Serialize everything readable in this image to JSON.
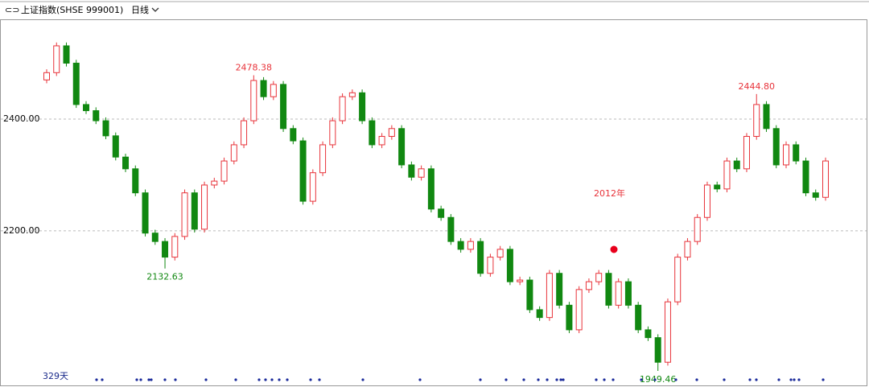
{
  "chart_data": {
    "type": "candlestick",
    "title": "上证指数(SHSE 999001)",
    "period": "日线",
    "annotation": "2012年",
    "count_label": "329天",
    "open": [
      2470,
      2483,
      2531,
      2500,
      2426,
      2415,
      2397,
      2370,
      2332,
      2311,
      2268,
      2196,
      2181,
      2153,
      2190,
      2268,
      2203,
      2282,
      2289,
      2325,
      2354,
      2397,
      2469,
      2440,
      2462,
      2383,
      2361,
      2253,
      2304,
      2354,
      2397,
      2440,
      2447,
      2397,
      2354,
      2369,
      2383,
      2318,
      2296,
      2311,
      2239,
      2224,
      2181,
      2167,
      2181,
      2124,
      2153,
      2167,
      2109,
      2112,
      2059,
      2045,
      2124,
      2067,
      2023,
      2095,
      2109,
      2124,
      2067,
      2109,
      2067,
      2023,
      2009,
      1965,
      2073,
      2153,
      2181,
      2224,
      2282,
      2275,
      2325,
      2311,
      2369,
      2426,
      2383,
      2318,
      2354,
      2325,
      2268,
      2260
    ],
    "high": [
      2489,
      2537,
      2537,
      2506,
      2432,
      2421,
      2403,
      2376,
      2338,
      2317,
      2274,
      2202,
      2187,
      2196,
      2274,
      2274,
      2288,
      2295,
      2331,
      2360,
      2403,
      2478.38,
      2475,
      2468,
      2468,
      2389,
      2367,
      2310,
      2360,
      2403,
      2446,
      2453,
      2453,
      2403,
      2375,
      2389,
      2389,
      2324,
      2317,
      2317,
      2245,
      2230,
      2187,
      2187,
      2187,
      2159,
      2173,
      2173,
      2118,
      2118,
      2065,
      2130,
      2130,
      2073,
      2101,
      2115,
      2130,
      2130,
      2115,
      2115,
      2073,
      2029,
      2015,
      2079,
      2159,
      2187,
      2230,
      2288,
      2288,
      2331,
      2331,
      2375,
      2444.8,
      2432,
      2389,
      2360,
      2360,
      2331,
      2274,
      2331
    ],
    "low": [
      2464,
      2477,
      2494,
      2420,
      2409,
      2391,
      2364,
      2326,
      2305,
      2262,
      2190,
      2175,
      2132.63,
      2147,
      2184,
      2197,
      2197,
      2276,
      2283,
      2319,
      2348,
      2391,
      2434,
      2434,
      2377,
      2355,
      2247,
      2247,
      2298,
      2348,
      2391,
      2434,
      2391,
      2348,
      2348,
      2363,
      2312,
      2290,
      2290,
      2233,
      2218,
      2175,
      2161,
      2161,
      2118,
      2118,
      2147,
      2103,
      2103,
      2053,
      2039,
      2039,
      2061,
      2017,
      2017,
      2089,
      2103,
      2061,
      2061,
      2061,
      2017,
      2003,
      1949.46,
      1959,
      2067,
      2147,
      2175,
      2218,
      2269,
      2269,
      2305,
      2305,
      2363,
      2377,
      2312,
      2312,
      2319,
      2262,
      2254,
      2254
    ],
    "close": [
      2483,
      2531,
      2500,
      2426,
      2415,
      2397,
      2370,
      2332,
      2311,
      2268,
      2196,
      2181,
      2153,
      2190,
      2268,
      2203,
      2282,
      2289,
      2325,
      2354,
      2397,
      2469,
      2440,
      2462,
      2383,
      2361,
      2253,
      2304,
      2354,
      2397,
      2440,
      2447,
      2397,
      2354,
      2369,
      2383,
      2318,
      2296,
      2311,
      2239,
      2224,
      2181,
      2167,
      2181,
      2124,
      2153,
      2167,
      2109,
      2112,
      2059,
      2045,
      2124,
      2067,
      2023,
      2095,
      2109,
      2124,
      2067,
      2109,
      2067,
      2023,
      2009,
      1965,
      2073,
      2153,
      2181,
      2224,
      2282,
      2275,
      2325,
      2311,
      2369,
      2426,
      2383,
      2318,
      2354,
      2325,
      2268,
      2260,
      2325
    ],
    "high_labels": [
      "2478.38",
      "2444.80"
    ],
    "low_labels": [
      "2132.63",
      "1949.46"
    ],
    "up_color": "#e8333a",
    "down_color": "#118811",
    "ylim": [
      1925,
      2577
    ],
    "yticks": [
      {
        "value": 2200,
        "label": "2200.00"
      },
      {
        "value": 2400,
        "label": "2400.00"
      }
    ],
    "grid": true
  }
}
